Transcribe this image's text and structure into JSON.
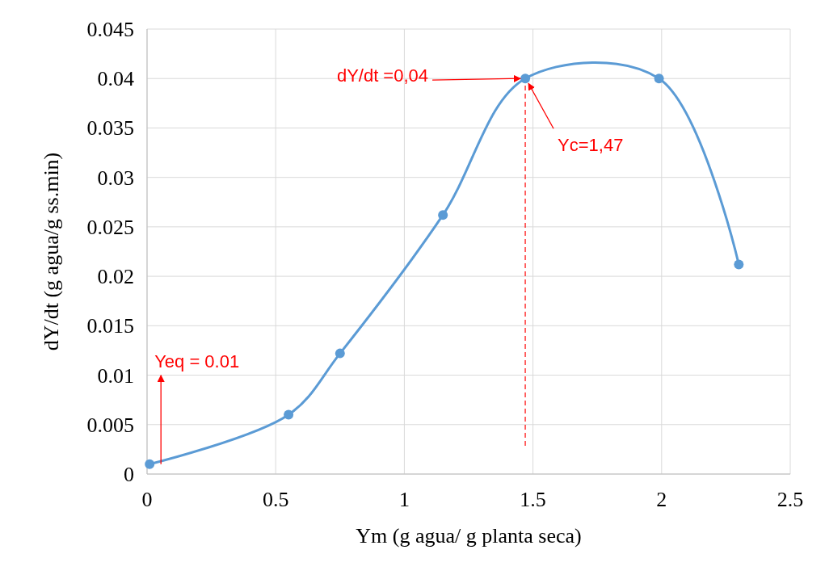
{
  "chart_data": {
    "type": "line",
    "xlabel": "Ym (g agua/ g planta seca)",
    "ylabel": "dY/dt (g agua/g ss.min)",
    "x": [
      0.01,
      0.55,
      0.75,
      1.15,
      1.47,
      1.99,
      2.3
    ],
    "series": [
      {
        "color": "#5b9bd5",
        "values": [
          0.001,
          0.006,
          0.0122,
          0.0262,
          0.04,
          0.04,
          0.0212
        ]
      }
    ],
    "marker": "circle",
    "grid": true,
    "xlim": [
      0,
      2.5
    ],
    "xticks": [
      0,
      0.5,
      1,
      1.5,
      2,
      2.5
    ],
    "ylim": [
      0,
      0.045
    ],
    "yticks": [
      0,
      0.005,
      0.01,
      0.015,
      0.02,
      0.025,
      0.03,
      0.035,
      0.04,
      0.045
    ],
    "ref_lines": [
      {
        "axis": "x",
        "value": 1.47,
        "color": "#ff0000",
        "line_style": "dashed"
      }
    ],
    "annotations": [
      {
        "text": "dY/dt =0,04",
        "x": 1.47,
        "y": 0.04
      },
      {
        "text": "Yc=1,47",
        "x": 1.47,
        "y": 0.04
      },
      "Yeq = 0.01"
    ]
  }
}
